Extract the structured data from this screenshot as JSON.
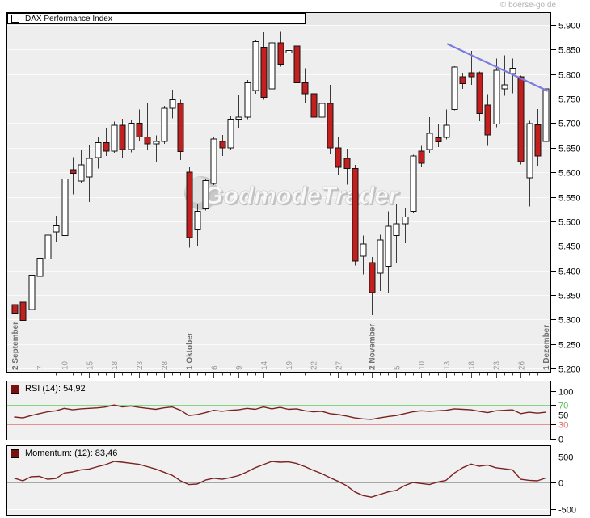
{
  "credit": "© boerse-go.de",
  "watermark": "GodmodeTrader",
  "colors": {
    "up_candle": "#ffffff",
    "down_candle": "#c41f1f",
    "indicator_line": "#7a2121",
    "trendline": "#7b7be0",
    "rsi_upper_band": "#82d882",
    "rsi_lower_band": "#e89090",
    "axis_text": "#000000",
    "x_label_minor": "#9a9a9a",
    "x_label_major": "#707070"
  },
  "chart_data": [
    {
      "panel": "price",
      "type": "candlestick",
      "legend": "DAX Performance Index",
      "ylim": [
        5200,
        5900
      ],
      "y_tick_labels": [
        "5.900",
        "5.850",
        "5.800",
        "5.750",
        "5.700",
        "5.650",
        "5.600",
        "5.550",
        "5.500",
        "5.450",
        "5.400",
        "5.350",
        "5.300",
        "5.250",
        "5.200"
      ],
      "x_ticks": [
        {
          "i": 0,
          "label": "2 September",
          "major": true
        },
        {
          "i": 3,
          "label": "7"
        },
        {
          "i": 6,
          "label": "10"
        },
        {
          "i": 9,
          "label": "15"
        },
        {
          "i": 12,
          "label": "18"
        },
        {
          "i": 15,
          "label": "23"
        },
        {
          "i": 18,
          "label": "28"
        },
        {
          "i": 21,
          "label": "1 Oktober",
          "major": true
        },
        {
          "i": 24,
          "label": "6"
        },
        {
          "i": 27,
          "label": "9"
        },
        {
          "i": 30,
          "label": "14"
        },
        {
          "i": 33,
          "label": "19"
        },
        {
          "i": 36,
          "label": "22"
        },
        {
          "i": 39,
          "label": "27"
        },
        {
          "i": 43,
          "label": "2 November",
          "major": true
        },
        {
          "i": 46,
          "label": "5"
        },
        {
          "i": 49,
          "label": "10"
        },
        {
          "i": 52,
          "label": "13"
        },
        {
          "i": 55,
          "label": "18"
        },
        {
          "i": 58,
          "label": "23"
        },
        {
          "i": 61,
          "label": "26"
        },
        {
          "i": 64,
          "label": "1 Dezember",
          "major": true
        }
      ],
      "candles_ohlc": [
        [
          5330,
          5347,
          5295,
          5313
        ],
        [
          5335,
          5365,
          5280,
          5298
        ],
        [
          5320,
          5409,
          5312,
          5390
        ],
        [
          5388,
          5432,
          5365,
          5425
        ],
        [
          5423,
          5479,
          5417,
          5472
        ],
        [
          5478,
          5511,
          5458,
          5491
        ],
        [
          5471,
          5590,
          5454,
          5586
        ],
        [
          5605,
          5631,
          5555,
          5598
        ],
        [
          5582,
          5645,
          5577,
          5615
        ],
        [
          5590,
          5655,
          5539,
          5628
        ],
        [
          5630,
          5672,
          5608,
          5660
        ],
        [
          5660,
          5689,
          5633,
          5643
        ],
        [
          5643,
          5703,
          5640,
          5696
        ],
        [
          5696,
          5709,
          5630,
          5646
        ],
        [
          5646,
          5707,
          5641,
          5700
        ],
        [
          5700,
          5728,
          5663,
          5672
        ],
        [
          5672,
          5740,
          5645,
          5658
        ],
        [
          5658,
          5675,
          5622,
          5663
        ],
        [
          5663,
          5735,
          5658,
          5730
        ],
        [
          5730,
          5768,
          5710,
          5748
        ],
        [
          5740,
          5748,
          5625,
          5642
        ],
        [
          5600,
          5610,
          5446,
          5467
        ],
        [
          5484,
          5534,
          5449,
          5520
        ],
        [
          5525,
          5586,
          5522,
          5583
        ],
        [
          5577,
          5671,
          5574,
          5668
        ],
        [
          5663,
          5676,
          5633,
          5650
        ],
        [
          5650,
          5715,
          5645,
          5708
        ],
        [
          5708,
          5758,
          5690,
          5712
        ],
        [
          5712,
          5788,
          5708,
          5782
        ],
        [
          5767,
          5870,
          5760,
          5866
        ],
        [
          5855,
          5885,
          5748,
          5753
        ],
        [
          5770,
          5890,
          5765,
          5864
        ],
        [
          5864,
          5888,
          5815,
          5820
        ],
        [
          5843,
          5870,
          5800,
          5848
        ],
        [
          5857,
          5895,
          5775,
          5782
        ],
        [
          5782,
          5812,
          5740,
          5760
        ],
        [
          5760,
          5785,
          5695,
          5712
        ],
        [
          5712,
          5778,
          5700,
          5740
        ],
        [
          5740,
          5778,
          5638,
          5650
        ],
        [
          5650,
          5672,
          5595,
          5610
        ],
        [
          5628,
          5648,
          5575,
          5608
        ],
        [
          5608,
          5615,
          5410,
          5419
        ],
        [
          5429,
          5471,
          5392,
          5454
        ],
        [
          5416,
          5427,
          5309,
          5355
        ],
        [
          5394,
          5473,
          5358,
          5462
        ],
        [
          5408,
          5520,
          5355,
          5490
        ],
        [
          5471,
          5534,
          5416,
          5495
        ],
        [
          5495,
          5527,
          5455,
          5509
        ],
        [
          5520,
          5636,
          5518,
          5633
        ],
        [
          5643,
          5654,
          5610,
          5618
        ],
        [
          5646,
          5712,
          5640,
          5679
        ],
        [
          5670,
          5698,
          5651,
          5662
        ],
        [
          5671,
          5728,
          5667,
          5696
        ],
        [
          5728,
          5816,
          5726,
          5814
        ],
        [
          5795,
          5803,
          5770,
          5781
        ],
        [
          5803,
          5847,
          5778,
          5795
        ],
        [
          5803,
          5805,
          5704,
          5720
        ],
        [
          5737,
          5759,
          5654,
          5676
        ],
        [
          5698,
          5832,
          5692,
          5808
        ],
        [
          5770,
          5838,
          5756,
          5778
        ],
        [
          5801,
          5832,
          5761,
          5812
        ],
        [
          5795,
          5797,
          5616,
          5622
        ],
        [
          5589,
          5705,
          5530,
          5699
        ],
        [
          5697,
          5729,
          5613,
          5633
        ],
        [
          5663,
          5780,
          5655,
          5770
        ]
      ],
      "trendline": {
        "x1_index": 52.2,
        "price1": 5861,
        "x2_index": 64.2,
        "price2": 5766
      }
    },
    {
      "panel": "rsi",
      "type": "line",
      "label": "RSI (14): 54,92",
      "ylim": [
        0,
        100
      ],
      "y_ticks": [
        {
          "v": 100,
          "label": "100",
          "color": "#000000"
        },
        {
          "v": 70,
          "label": "70",
          "color": "#55bb55"
        },
        {
          "v": 50,
          "label": "50",
          "color": "#000000"
        },
        {
          "v": 30,
          "label": "30",
          "color": "#dd6666"
        },
        {
          "v": 0,
          "label": "0",
          "color": "#000000"
        }
      ],
      "levels": [
        {
          "v": 70,
          "color": "#82d882"
        },
        {
          "v": 50,
          "color": "#dcdcdc"
        },
        {
          "v": 30,
          "color": "#e89090"
        }
      ],
      "values": [
        45,
        43,
        48,
        52,
        56,
        58,
        63,
        60,
        62,
        63,
        64,
        66,
        70,
        66,
        68,
        65,
        63,
        61,
        64,
        66,
        59,
        48,
        50,
        54,
        59,
        57,
        59,
        60,
        63,
        61,
        66,
        62,
        65,
        61,
        62,
        58,
        56,
        57,
        52,
        50,
        47,
        43,
        41,
        40,
        43,
        46,
        48,
        52,
        56,
        58,
        57,
        58,
        59,
        62,
        61,
        60,
        57,
        54,
        58,
        59,
        60,
        52,
        55,
        53,
        55
      ]
    },
    {
      "panel": "momentum",
      "type": "line",
      "label": "Momentum: (12): 83,46",
      "ylim": [
        -618,
        690
      ],
      "y_ticks": [
        {
          "v": 500,
          "label": "500",
          "color": "#000000"
        },
        {
          "v": 0,
          "label": "0",
          "color": "#000000"
        },
        {
          "v": -500,
          "label": "-500",
          "color": "#000000"
        }
      ],
      "levels": [
        {
          "v": 500,
          "color": "#ffffff"
        },
        {
          "v": 0,
          "color": "#a8a8a8"
        },
        {
          "v": -500,
          "color": "#ffffff"
        }
      ],
      "values": [
        80,
        30,
        110,
        115,
        60,
        75,
        180,
        200,
        240,
        255,
        300,
        340,
        400,
        385,
        365,
        345,
        300,
        255,
        195,
        135,
        30,
        -40,
        -30,
        45,
        80,
        60,
        90,
        130,
        200,
        280,
        340,
        400,
        385,
        390,
        360,
        300,
        230,
        170,
        90,
        20,
        -60,
        -180,
        -250,
        -280,
        -230,
        -180,
        -150,
        -60,
        0,
        -20,
        -40,
        10,
        40,
        180,
        280,
        350,
        310,
        330,
        280,
        260,
        240,
        60,
        40,
        30,
        85
      ]
    }
  ]
}
